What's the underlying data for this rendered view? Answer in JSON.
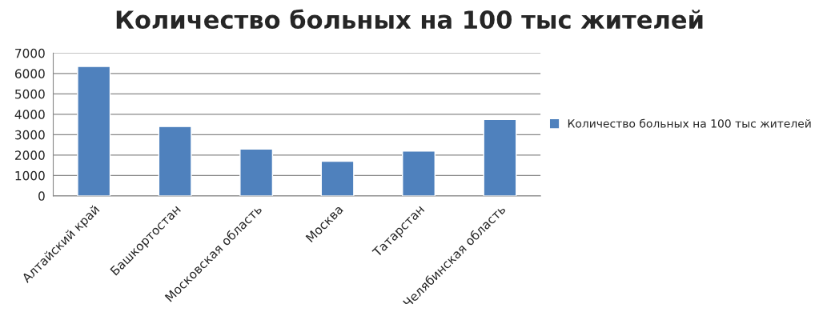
{
  "chart_data": {
    "type": "bar",
    "title": "Количество больных на 100 тыс жителей",
    "categories": [
      "Алтайский край",
      "Башкортостан",
      "Московская область",
      "Москва",
      "Татарстан",
      "Челябинская область"
    ],
    "series": [
      {
        "name": "Количество больных на 100 тыс жителей",
        "color": "#4f81bd",
        "values": [
          6350,
          3400,
          2300,
          1700,
          2200,
          3750
        ]
      }
    ],
    "ylim": [
      0,
      7000
    ],
    "yticks": [
      0,
      1000,
      2000,
      3000,
      4000,
      5000,
      6000,
      7000
    ],
    "grid": "y",
    "legend": "right"
  }
}
